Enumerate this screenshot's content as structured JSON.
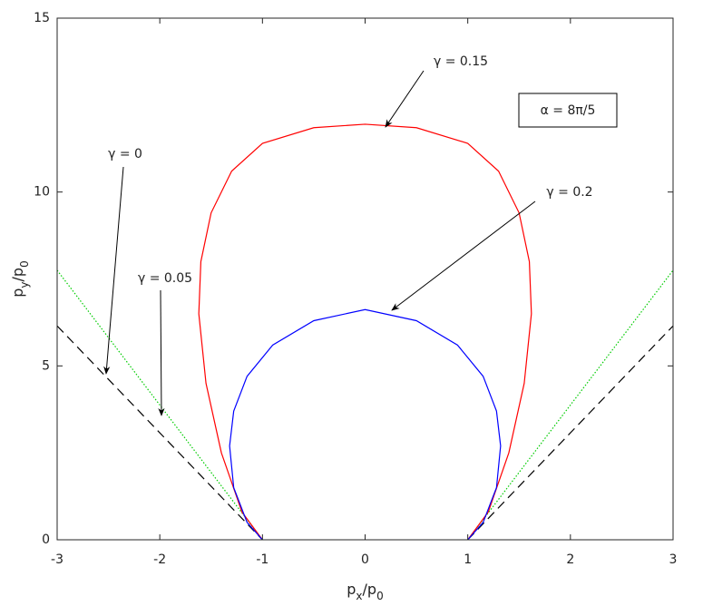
{
  "chart_data": {
    "type": "line",
    "xlabel": [
      "p",
      "x",
      "/p",
      "0"
    ],
    "ylabel": [
      "p",
      "y",
      "/p",
      "0"
    ],
    "xlim": [
      -3,
      3
    ],
    "ylim": [
      0,
      15
    ],
    "xticks": [
      -3,
      -2,
      -1,
      0,
      1,
      2,
      3
    ],
    "yticks": [
      0,
      5,
      10,
      15
    ],
    "annotations": [
      "α = 8π/5"
    ],
    "series": [
      {
        "name": "γ = 0",
        "color": "#000000",
        "dash": "10,6",
        "x": [
          -3,
          -1,
          null,
          1,
          3
        ],
        "values": [
          6.15,
          0,
          null,
          0,
          6.15
        ]
      },
      {
        "name": "γ = 0.05",
        "color": "#00cc00",
        "dash": "1.5,2",
        "x": [
          -3,
          -1,
          null,
          1,
          3
        ],
        "values": [
          7.75,
          0,
          null,
          0,
          7.75
        ]
      },
      {
        "name": "γ = 0.15",
        "color": "#ff0000",
        "dash": "",
        "x": [
          -1,
          -1.2,
          -1.4,
          -1.55,
          -1.62,
          -1.6,
          -1.5,
          -1.3,
          -1,
          -0.5,
          0,
          0.5,
          1,
          1.3,
          1.5,
          1.6,
          1.62,
          1.55,
          1.4,
          1.2,
          1
        ],
        "values": [
          0,
          0.8,
          2.5,
          4.5,
          6.5,
          8,
          9.4,
          10.6,
          11.4,
          11.85,
          11.95,
          11.85,
          11.4,
          10.6,
          9.4,
          8,
          6.5,
          4.5,
          2.5,
          0.8,
          0
        ]
      },
      {
        "name": "γ = 0.2",
        "color": "#0000ff",
        "dash": "",
        "x": [
          -1,
          -1.15,
          -1.28,
          -1.32,
          -1.28,
          -1.15,
          -0.9,
          -0.5,
          0,
          0.5,
          0.9,
          1.15,
          1.28,
          1.32,
          1.28,
          1.15,
          1
        ],
        "values": [
          0,
          0.5,
          1.5,
          2.7,
          3.7,
          4.7,
          5.6,
          6.3,
          6.62,
          6.3,
          5.6,
          4.7,
          3.7,
          2.7,
          1.5,
          0.5,
          0
        ]
      }
    ]
  }
}
